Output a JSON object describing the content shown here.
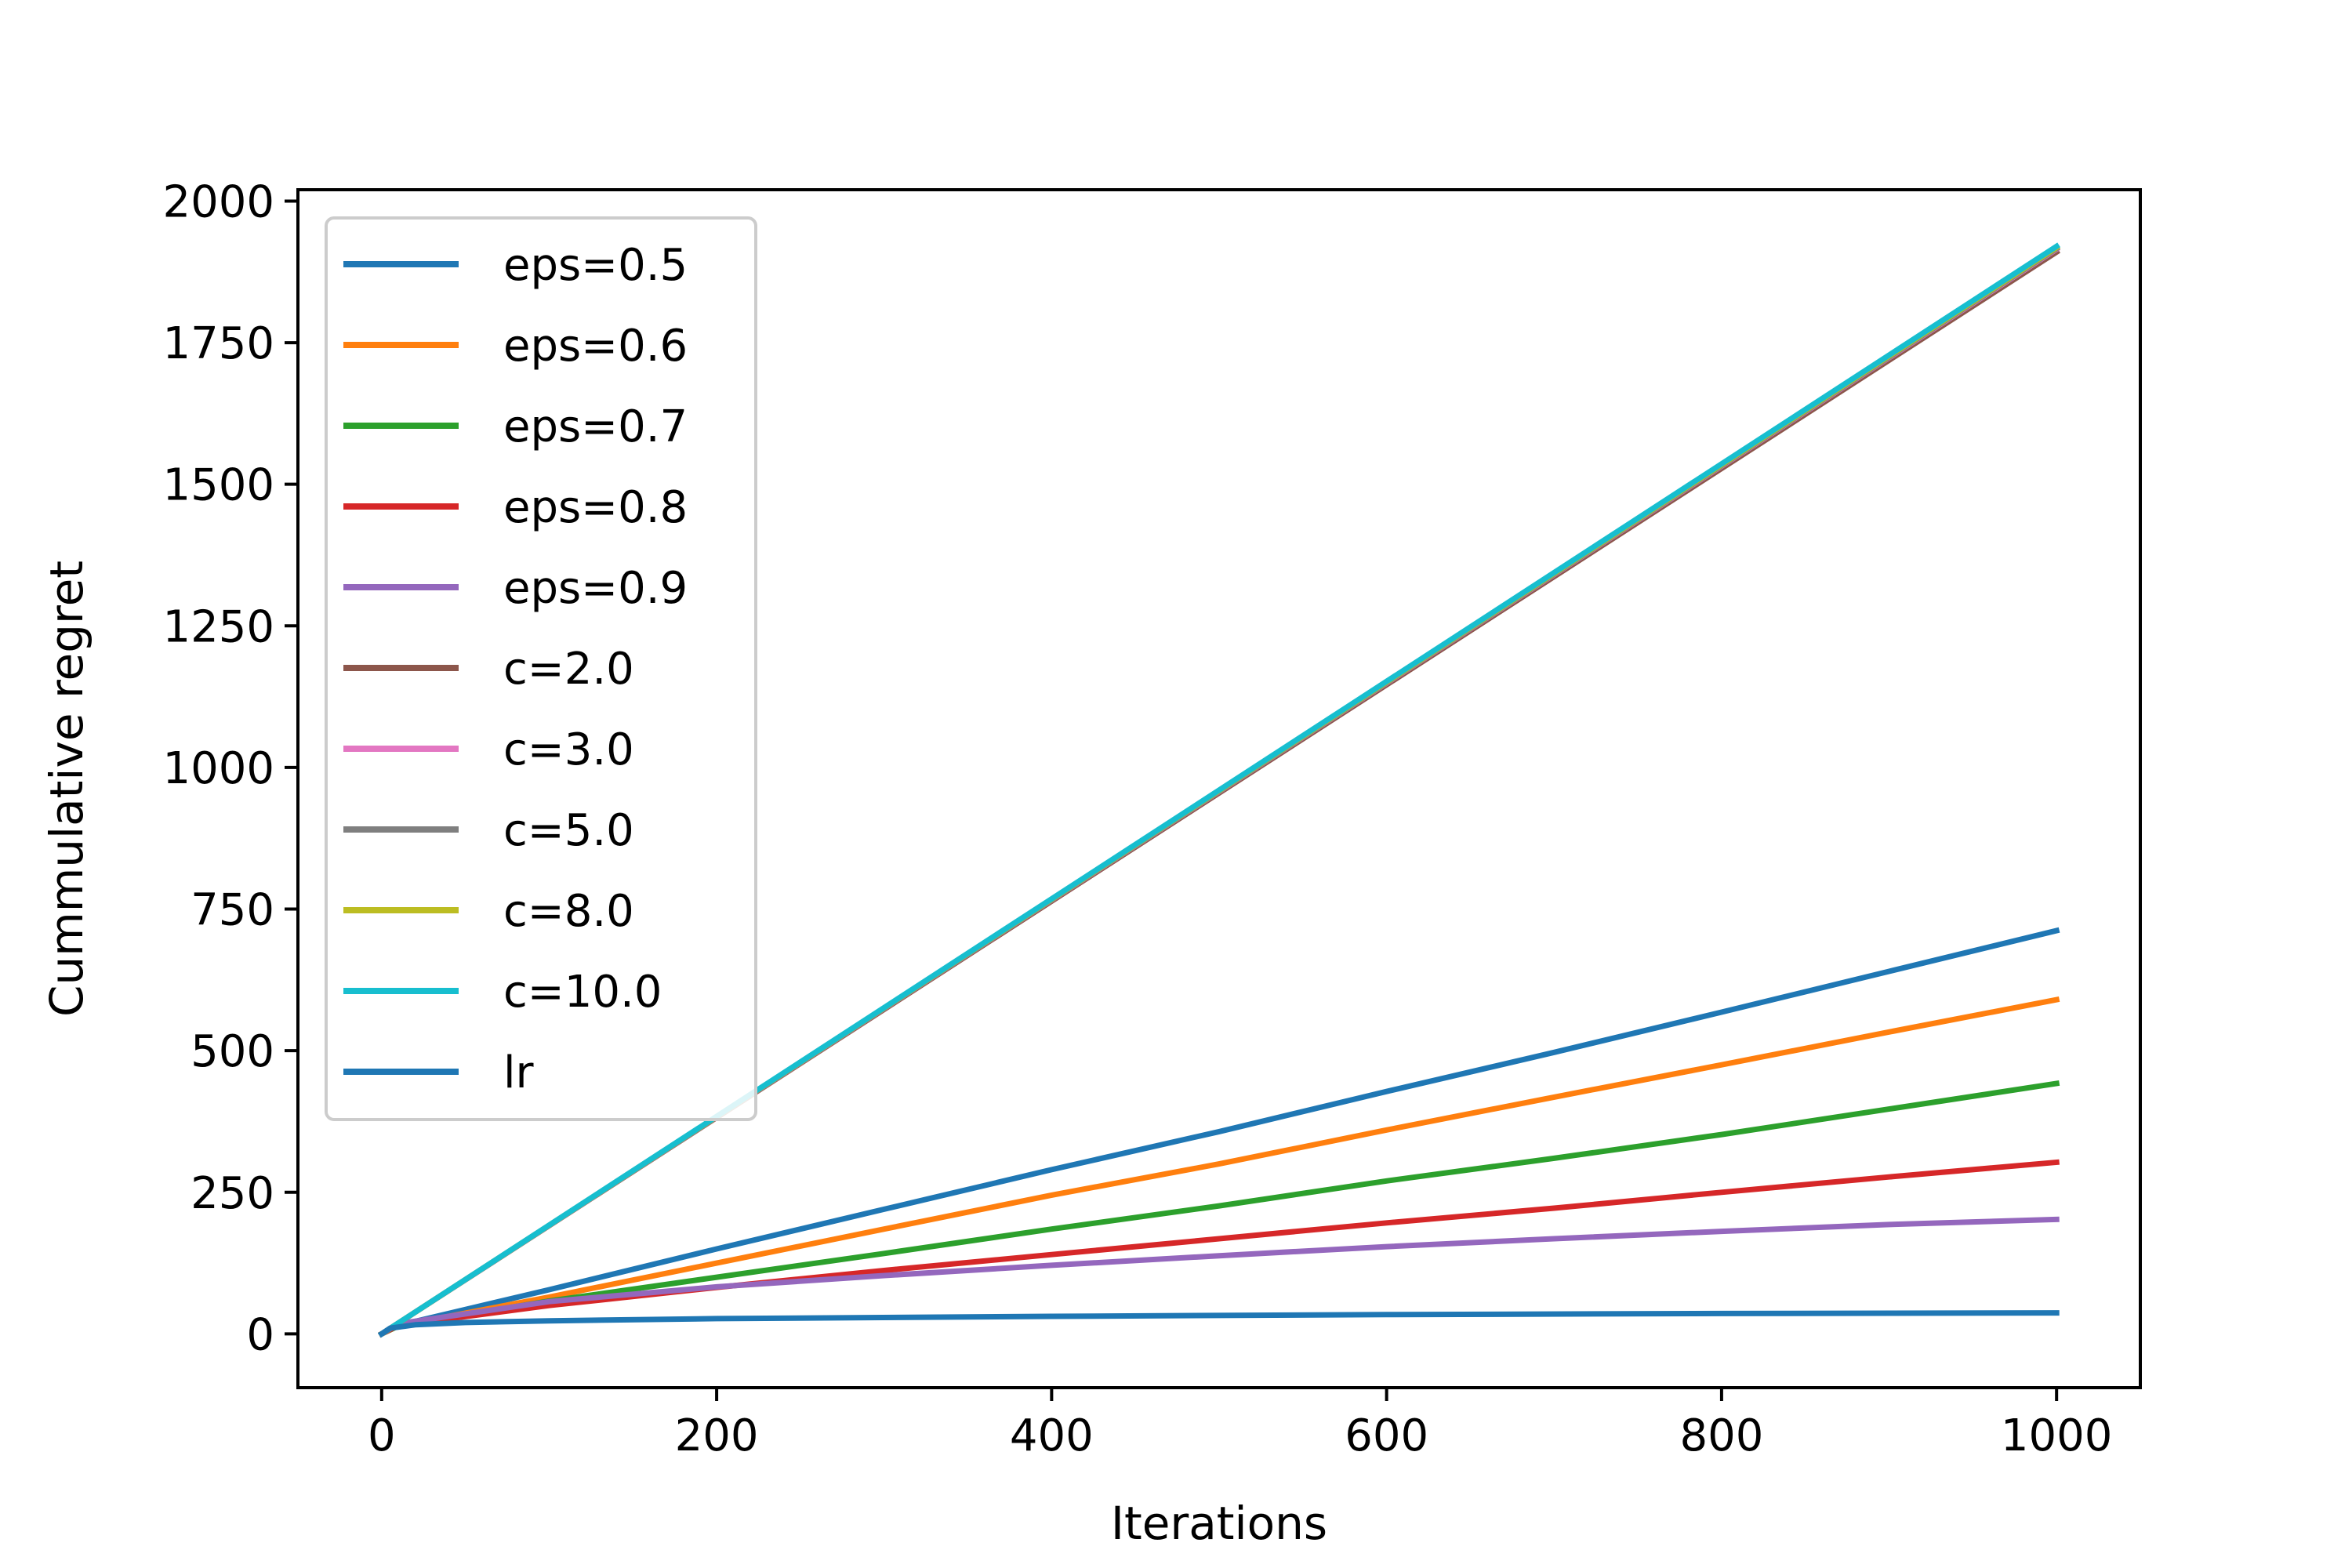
{
  "chart_data": {
    "type": "line",
    "title": "",
    "xlabel": "Iterations",
    "ylabel": "Cummulative regret",
    "xlim": [
      -50,
      1050
    ],
    "ylim": [
      -95,
      2020
    ],
    "xticks": [
      0,
      200,
      400,
      600,
      800,
      1000
    ],
    "yticks": [
      0,
      250,
      500,
      750,
      1000,
      1250,
      1500,
      1750,
      2000
    ],
    "grid": false,
    "legend_position": "upper-left",
    "series": [
      {
        "name": "eps=0.5",
        "color": "#1f77b4",
        "x": [
          0,
          10,
          100,
          200,
          300,
          400,
          500,
          600,
          700,
          800,
          900,
          1000
        ],
        "y": [
          0,
          15,
          78,
          150,
          220,
          290,
          357,
          428,
          497,
          568,
          640,
          712
        ]
      },
      {
        "name": "eps=0.6",
        "color": "#ff7f0e",
        "x": [
          0,
          10,
          100,
          200,
          300,
          400,
          500,
          600,
          700,
          800,
          900,
          1000
        ],
        "y": [
          0,
          14,
          65,
          125,
          185,
          245,
          300,
          360,
          418,
          475,
          533,
          590
        ]
      },
      {
        "name": "eps=0.7",
        "color": "#2ca02c",
        "x": [
          0,
          10,
          100,
          200,
          300,
          400,
          500,
          600,
          700,
          800,
          900,
          1000
        ],
        "y": [
          0,
          14,
          58,
          100,
          142,
          185,
          226,
          270,
          310,
          352,
          397,
          442
        ]
      },
      {
        "name": "eps=0.8",
        "color": "#d62728",
        "x": [
          0,
          10,
          100,
          200,
          300,
          400,
          500,
          600,
          700,
          800,
          900,
          1000
        ],
        "y": [
          0,
          15,
          50,
          82,
          112,
          140,
          168,
          196,
          222,
          250,
          277,
          303
        ]
      },
      {
        "name": "eps=0.9",
        "color": "#9467bd",
        "x": [
          0,
          10,
          100,
          200,
          300,
          400,
          500,
          600,
          700,
          800,
          900,
          1000
        ],
        "y": [
          0,
          18,
          57,
          83,
          103,
          121,
          138,
          154,
          168,
          181,
          193,
          202
        ]
      },
      {
        "name": "c=2.0",
        "color": "#8c564b",
        "x": [
          0,
          1000
        ],
        "y": [
          0,
          1910
        ]
      },
      {
        "name": "c=3.0",
        "color": "#e377c2",
        "x": [
          0,
          1000
        ],
        "y": [
          0,
          1915
        ]
      },
      {
        "name": "c=5.0",
        "color": "#7f7f7f",
        "x": [
          0,
          1000
        ],
        "y": [
          0,
          1916
        ]
      },
      {
        "name": "c=8.0",
        "color": "#bcbd22",
        "x": [
          0,
          1000
        ],
        "y": [
          0,
          1918
        ]
      },
      {
        "name": "c=10.0",
        "color": "#17becf",
        "x": [
          0,
          1000
        ],
        "y": [
          0,
          1920
        ]
      },
      {
        "name": "lr",
        "color": "#1f77b4",
        "x": [
          0,
          5,
          20,
          50,
          100,
          200,
          400,
          600,
          800,
          1000
        ],
        "y": [
          0,
          10,
          16,
          20,
          23,
          27,
          31,
          34,
          36,
          37
        ]
      }
    ]
  }
}
